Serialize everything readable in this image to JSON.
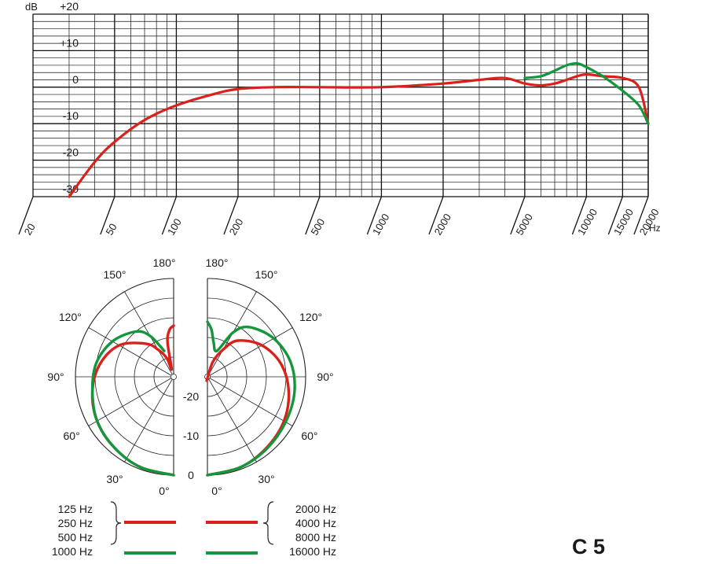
{
  "model_label": "C 5",
  "colors": {
    "red": "#d9211b",
    "green": "#13963c",
    "grid": "#111111"
  },
  "chart_data": [
    {
      "type": "line",
      "x_scale": "log",
      "xlim": [
        20,
        20000
      ],
      "ylim": [
        -30,
        20
      ],
      "yunit": "dB",
      "xunit": "Hz",
      "y_ticks": [
        "+20",
        "+10",
        "0",
        "-10",
        "-20",
        "-30"
      ],
      "y_tick_values": [
        20,
        10,
        0,
        -10,
        -20,
        -30
      ],
      "x_ticks": [
        "20",
        "50",
        "100",
        "200",
        "500",
        "1000",
        "2000",
        "5000",
        "10000",
        "15000",
        "20000"
      ],
      "x_tick_values": [
        20,
        50,
        100,
        200,
        500,
        1000,
        2000,
        5000,
        10000,
        15000,
        20000
      ],
      "grid": true,
      "series": [
        {
          "color": "red",
          "x": [
            30,
            40,
            50,
            70,
            100,
            150,
            200,
            300,
            500,
            1000,
            2000,
            3000,
            4000,
            5000,
            6000,
            7000,
            8000,
            9000,
            10000,
            12000,
            15000,
            18000,
            20000
          ],
          "y": [
            -30,
            -20.5,
            -15,
            -9,
            -5,
            -2,
            -0.5,
            0,
            0,
            0,
            1,
            2,
            2.5,
            1,
            0.5,
            1,
            2,
            3,
            3.5,
            3,
            2.5,
            0,
            -10
          ]
        },
        {
          "color": "green",
          "x": [
            5000,
            6000,
            7000,
            8000,
            9000,
            10000,
            12000,
            15000,
            18000,
            20000
          ],
          "y": [
            2.5,
            3,
            4.5,
            6,
            6.5,
            5.5,
            3,
            -1,
            -5,
            -10
          ]
        }
      ]
    },
    {
      "type": "polar",
      "ring_ticks": [
        "-20",
        "-10",
        "0"
      ],
      "left_angle_labels": [
        "180°",
        "150°",
        "120°",
        "90°",
        "60°",
        "30°",
        "0°"
      ],
      "right_angle_labels": [
        "180°",
        "150°",
        "120°",
        "90°",
        "60°",
        "30°",
        "0°"
      ],
      "left_legend": [
        "125 Hz",
        "250 Hz",
        "500 Hz",
        "1000 Hz"
      ],
      "right_legend": [
        "2000 Hz",
        "4000 Hz",
        "8000 Hz",
        "16000 Hz"
      ],
      "series": [
        {
          "side": "left",
          "color": "red",
          "angles": [
            0,
            20,
            40,
            60,
            80,
            100,
            120,
            140,
            150,
            160,
            165,
            170,
            175,
            180
          ],
          "dB": [
            0,
            -0.5,
            -1.5,
            -2.5,
            -4,
            -6,
            -9,
            -14,
            -17,
            -20,
            -23,
            -16,
            -13,
            -12
          ]
        },
        {
          "side": "left",
          "color": "green",
          "angles": [
            0,
            20,
            40,
            60,
            80,
            100,
            120,
            140,
            150,
            160
          ],
          "dB": [
            0,
            -0.5,
            -1.5,
            -2.5,
            -4,
            -5,
            -7,
            -10,
            -13,
            -18
          ]
        },
        {
          "side": "right",
          "color": "red",
          "angles": [
            0,
            20,
            40,
            60,
            80,
            100,
            120,
            140,
            150,
            160,
            170
          ],
          "dB": [
            0,
            -0.5,
            -1.5,
            -2.5,
            -4,
            -6,
            -9,
            -13,
            -17,
            -21,
            -26
          ]
        },
        {
          "side": "right",
          "color": "green",
          "angles": [
            0,
            20,
            40,
            60,
            80,
            100,
            120,
            140,
            150,
            160,
            170,
            175,
            180
          ],
          "dB": [
            0,
            -0.5,
            -1.3,
            -2,
            -2.5,
            -3.5,
            -5.5,
            -8.5,
            -12,
            -18,
            -16,
            -13,
            -11
          ]
        }
      ]
    }
  ]
}
